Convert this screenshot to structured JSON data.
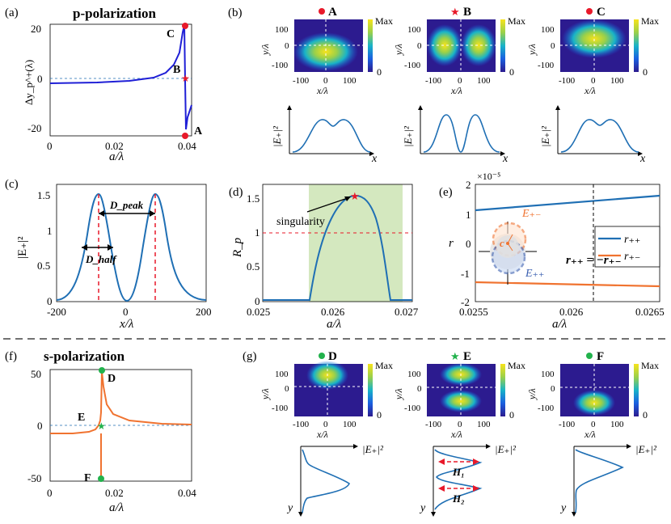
{
  "panels": {
    "a": {
      "tag": "(a)",
      "title": "p-polarization",
      "ylabel": "Δy_p^+(λ)",
      "xlabel": "a/λ",
      "xticks": [
        "0",
        "0.02",
        "0.04"
      ],
      "yticks": [
        "20",
        "0",
        "-20"
      ],
      "points": [
        {
          "label": "C"
        },
        {
          "label": "B"
        },
        {
          "label": "A"
        }
      ]
    },
    "b": {
      "tag": "(b)",
      "maps": [
        {
          "label": "A"
        },
        {
          "label": "B"
        },
        {
          "label": "C"
        }
      ],
      "ylabel": "y/λ",
      "xlabel": "x/λ",
      "cb_max": "Max",
      "cb_min": "0",
      "yticks": [
        "100",
        "0",
        "-100"
      ],
      "xticks": [
        "-100",
        "0",
        "100"
      ],
      "profile_ylabel": "|E₊|²",
      "profile_xlabel": "x"
    },
    "c": {
      "tag": "(c)",
      "ylabel": "|E₊|²",
      "xlabel": "x/λ",
      "xticks": [
        "-200",
        "0",
        "200"
      ],
      "yticks": [
        "1.5",
        "1",
        "0.5",
        "0"
      ],
      "d_peak": "D_peak",
      "d_half": "D_half"
    },
    "d": {
      "tag": "(d)",
      "ylabel": "R_p",
      "xlabel": "a/λ",
      "xticks": [
        "0.025",
        "0.026",
        "0.027"
      ],
      "yticks": [
        "1.5",
        "1",
        "0.5",
        "0"
      ],
      "annotation": "singularity"
    },
    "e": {
      "tag": "(e)",
      "ylabel": "r",
      "xlabel": "a/λ",
      "exponent": "×10⁻⁵",
      "xticks": [
        "0.0255",
        "0.026",
        "0.0265"
      ],
      "yticks": [
        "2",
        "1",
        "0",
        "-1",
        "-2"
      ],
      "legend": [
        "r₊₊",
        "r₊₋"
      ],
      "equation": "r₊₊ = −r₊₋",
      "circle_labels": [
        "E₊₋",
        "E₊₊",
        "c"
      ]
    },
    "f": {
      "tag": "(f)",
      "title": "s-polarization",
      "xlabel": "a/λ",
      "xticks": [
        "0",
        "0.02",
        "0.04"
      ],
      "yticks": [
        "50",
        "0",
        "-50"
      ],
      "points": [
        {
          "label": "D"
        },
        {
          "label": "E"
        },
        {
          "label": "F"
        }
      ]
    },
    "g": {
      "tag": "(g)",
      "maps": [
        {
          "label": "D"
        },
        {
          "label": "E"
        },
        {
          "label": "F"
        }
      ],
      "ylabel": "y/λ",
      "xlabel": "x/λ",
      "cb_max": "Max",
      "cb_min": "0",
      "yticks": [
        "100",
        "0",
        "-100"
      ],
      "xticks": [
        "-100",
        "0",
        "100"
      ],
      "profile_label": "|E₊|²",
      "profile_axis": "y",
      "h_labels": [
        "H₁",
        "H₂"
      ]
    }
  },
  "colors": {
    "blue": "#1f1fd6",
    "curve": "#1f6fb4",
    "orange": "#f07330",
    "red": "#e8192a",
    "green": "#22b24c",
    "shade": "#cfe5b8"
  }
}
